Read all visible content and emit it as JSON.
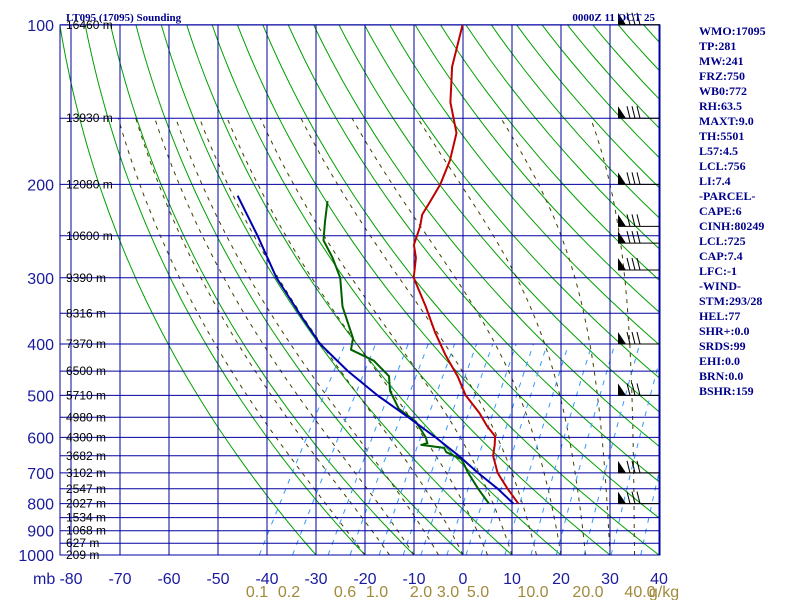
{
  "chart_data": {
    "type": "line",
    "title": "LT095 (17095) Sounding",
    "valid_time": "0000Z 11 OCT 25",
    "xlabel_unit": "mb",
    "mixing_ratio_unit": "g/kg",
    "pressure_levels": [
      100,
      200,
      300,
      400,
      500,
      600,
      700,
      800,
      900,
      1000
    ],
    "temperature_ticks": [
      -80,
      -70,
      -60,
      -50,
      -40,
      -30,
      -20,
      -10,
      0,
      10,
      20,
      30,
      40
    ],
    "pressure_tick_labels": [
      "100",
      "200",
      "300",
      "400",
      "500",
      "600",
      "700",
      "800",
      "900",
      "1000"
    ],
    "temperature_tick_labels": [
      "-80",
      "-70",
      "-60",
      "-50",
      "-40",
      "-30",
      "-20",
      "-10",
      "0",
      "10",
      "20",
      "30",
      "40"
    ],
    "mixing_ratio_labels": [
      "0.1",
      "0.2",
      "0.6",
      "1.0",
      "2.0",
      "3.0",
      "5.0",
      "10.0",
      "20.0",
      "40.0"
    ],
    "height_labels": [
      {
        "label": "16460 m",
        "p": 100
      },
      {
        "label": "13930 m",
        "p": 150
      },
      {
        "label": "12080 m",
        "p": 200
      },
      {
        "label": "10600 m",
        "p": 250
      },
      {
        "label": "9390 m",
        "p": 300
      },
      {
        "label": "8316 m",
        "p": 350
      },
      {
        "label": "7370 m",
        "p": 400
      },
      {
        "label": "6500 m",
        "p": 450
      },
      {
        "label": "5710 m",
        "p": 500
      },
      {
        "label": "4980 m",
        "p": 550
      },
      {
        "label": "4300 m",
        "p": 600
      },
      {
        "label": "3682 m",
        "p": 650
      },
      {
        "label": "3102 m",
        "p": 700
      },
      {
        "label": "2547 m",
        "p": 750
      },
      {
        "label": "2027 m",
        "p": 800
      },
      {
        "label": "1534 m",
        "p": 850
      },
      {
        "label": "1068 m",
        "p": 900
      },
      {
        "label": "627 m",
        "p": 950
      },
      {
        "label": "209 m",
        "p": 1000
      }
    ],
    "series": [
      {
        "name": "Temperature",
        "color": "#c00000",
        "points": [
          [
            100,
            -65
          ],
          [
            120,
            -62
          ],
          [
            140,
            -58
          ],
          [
            160,
            -53
          ],
          [
            180,
            -51
          ],
          [
            200,
            -50
          ],
          [
            215,
            -50
          ],
          [
            228,
            -50
          ],
          [
            240,
            -49
          ],
          [
            260,
            -48
          ],
          [
            275,
            -46
          ],
          [
            300,
            -44
          ],
          [
            340,
            -38
          ],
          [
            380,
            -33
          ],
          [
            420,
            -28
          ],
          [
            460,
            -23
          ],
          [
            500,
            -19
          ],
          [
            540,
            -14
          ],
          [
            570,
            -11
          ],
          [
            597,
            -8
          ],
          [
            620,
            -7
          ],
          [
            650,
            -6
          ],
          [
            700,
            -3
          ],
          [
            750,
            1
          ],
          [
            800,
            5
          ]
        ]
      },
      {
        "name": "Dewpoint",
        "color": "#006000",
        "points": [
          [
            215,
            -71
          ],
          [
            235,
            -69
          ],
          [
            255,
            -67
          ],
          [
            275,
            -63
          ],
          [
            300,
            -59
          ],
          [
            340,
            -55
          ],
          [
            390,
            -49
          ],
          [
            410,
            -48
          ],
          [
            430,
            -42
          ],
          [
            460,
            -37
          ],
          [
            490,
            -35
          ],
          [
            530,
            -31
          ],
          [
            560,
            -26
          ],
          [
            600,
            -22
          ],
          [
            615,
            -21
          ],
          [
            620,
            -22
          ],
          [
            628,
            -17
          ],
          [
            640,
            -16
          ],
          [
            660,
            -12
          ],
          [
            700,
            -9
          ],
          [
            750,
            -5
          ],
          [
            800,
            -1
          ]
        ]
      },
      {
        "name": "Parcel",
        "color": "#0000b0",
        "points": [
          [
            210,
            -90
          ],
          [
            250,
            -81
          ],
          [
            300,
            -72
          ],
          [
            350,
            -63
          ],
          [
            400,
            -55
          ],
          [
            450,
            -46
          ],
          [
            500,
            -37
          ],
          [
            550,
            -28
          ],
          [
            600,
            -20
          ],
          [
            650,
            -13
          ],
          [
            700,
            -7
          ],
          [
            750,
            -1
          ],
          [
            800,
            4
          ]
        ]
      }
    ],
    "wind_barbs_pressures": [
      100,
      150,
      200,
      240,
      258,
      290,
      400,
      500,
      700,
      800
    ],
    "indices": [
      "WMO:17095",
      "TP:281",
      "MW:241",
      "FRZ:750",
      "WB0:772",
      "RH:63.5",
      "MAXT:9.0",
      "TH:5501",
      "L57:4.5",
      "LCL:756",
      "LI:7.4",
      "-PARCEL-",
      "CAPE:6",
      "CINH:80249",
      "LCL:725",
      "CAP:7.4",
      "LFC:-1",
      "-WIND-",
      "STM:293/28",
      "HEL:77",
      "SHR+:0.0",
      "SRDS:99",
      "EHI:0.0",
      "BRN:0.0",
      "BSHR:159"
    ],
    "colors": {
      "grid": "#0000a0",
      "dry_adiabat": "#00a000",
      "moist_adiabat": "#404000",
      "mixing_ratio": "#3399ff",
      "temperature": "#c00000",
      "dewpoint": "#006000",
      "parcel": "#0000b0"
    }
  }
}
